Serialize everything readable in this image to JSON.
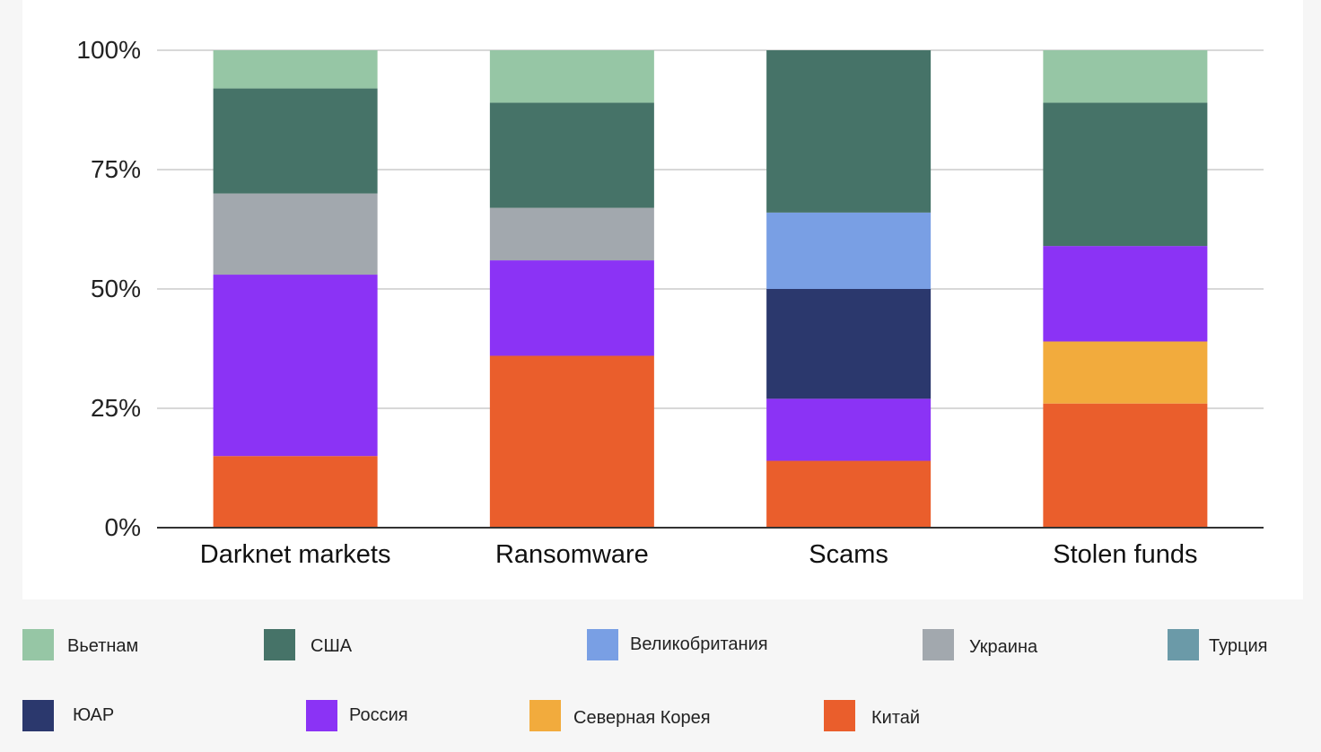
{
  "chart_data": {
    "type": "bar",
    "stacked": true,
    "percent_scale": true,
    "categories": [
      "Darknet markets",
      "Ransomware",
      "Scams",
      "Stolen funds"
    ],
    "y_ticks": [
      "0%",
      "25%",
      "50%",
      "75%",
      "100%"
    ],
    "ylim": [
      0,
      100
    ],
    "grid": true,
    "legend_position": "bottom",
    "series": [
      {
        "name": "Китай",
        "color": "#ea5e2c",
        "values": [
          15,
          36,
          14,
          26
        ]
      },
      {
        "name": "Северная Корея",
        "color": "#f2ab3d",
        "values": [
          0,
          0,
          0,
          13
        ]
      },
      {
        "name": "Россия",
        "color": "#8b33f5",
        "values": [
          38,
          20,
          13,
          20
        ]
      },
      {
        "name": "ЮАР",
        "color": "#2b386d",
        "values": [
          0,
          0,
          23,
          0
        ]
      },
      {
        "name": "Турция",
        "color": "#6b9aa8",
        "values": [
          0,
          0,
          0,
          0
        ]
      },
      {
        "name": "Украина",
        "color": "#a2a8ae",
        "values": [
          17,
          11,
          0,
          0
        ]
      },
      {
        "name": "Великобритания",
        "color": "#799fe4",
        "values": [
          0,
          0,
          16,
          0
        ]
      },
      {
        "name": "США",
        "color": "#467368",
        "values": [
          22,
          22,
          34,
          30
        ]
      },
      {
        "name": "Вьетнам",
        "color": "#96c6a5",
        "values": [
          8,
          11,
          0,
          11
        ]
      }
    ]
  },
  "legend": [
    {
      "label": "Вьетнам",
      "color": "#96c6a5"
    },
    {
      "label": "США",
      "color": "#467368"
    },
    {
      "label": "Великобритания",
      "color": "#799fe4"
    },
    {
      "label": "Украина",
      "color": "#a2a8ae"
    },
    {
      "label": "Турция",
      "color": "#6b9aa8"
    },
    {
      "label": "ЮАР",
      "color": "#2b386d"
    },
    {
      "label": "Россия",
      "color": "#8b33f5"
    },
    {
      "label": "Северная Корея",
      "color": "#f2ab3d"
    },
    {
      "label": "Китай",
      "color": "#ea5e2c"
    }
  ]
}
